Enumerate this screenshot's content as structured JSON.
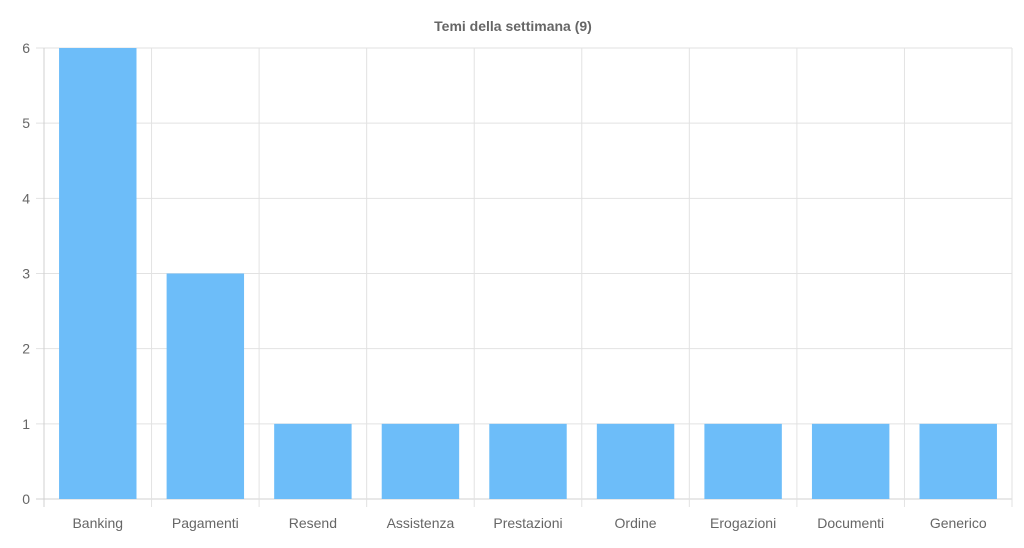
{
  "chart_data": {
    "type": "bar",
    "title": "Temi della settimana (9)",
    "categories": [
      "Banking",
      "Pagamenti",
      "Resend",
      "Assistenza",
      "Prestazioni",
      "Ordine",
      "Erogazioni",
      "Documenti",
      "Generico"
    ],
    "values": [
      6,
      3,
      1,
      1,
      1,
      1,
      1,
      1,
      1
    ],
    "yticks": [
      "0",
      "1",
      "2",
      "3",
      "4",
      "5",
      "6"
    ],
    "ylim": [
      0,
      6
    ],
    "grid": true,
    "legend": "none",
    "colors": {
      "bar": "#6dbdf9",
      "grid": "#e2e2e2",
      "text": "#666666"
    }
  }
}
